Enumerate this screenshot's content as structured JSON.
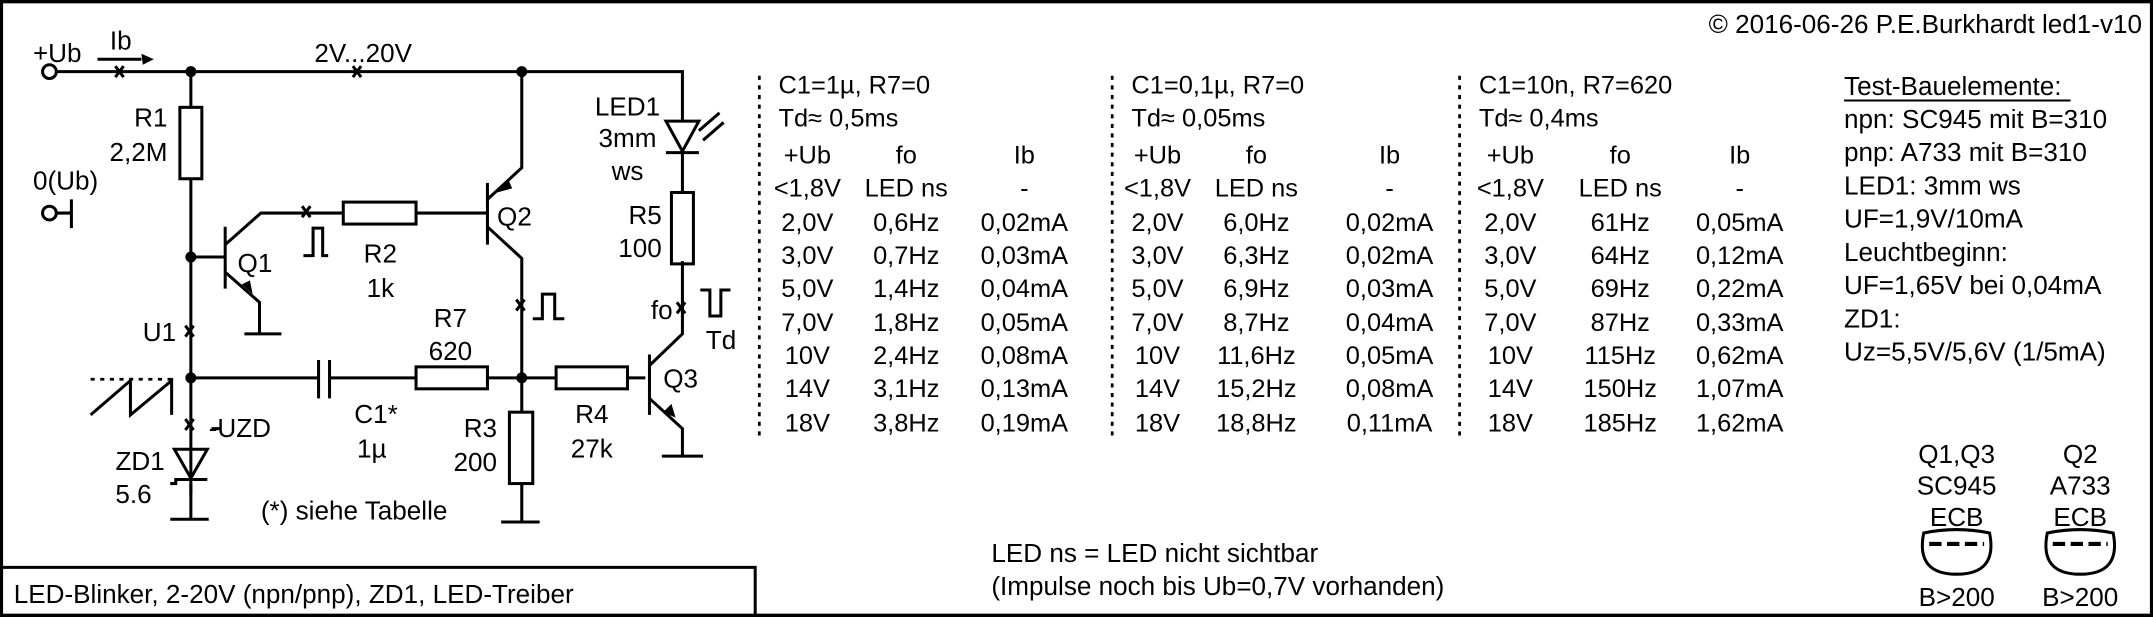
{
  "header": {
    "copyright": "© 2016-06-26 P.E.Burkhardt led1-v10"
  },
  "footer": {
    "title": "LED-Blinker, 2-20V (npn/pnp), ZD1, LED-Treiber"
  },
  "notes": {
    "line1": "LED ns = LED nicht sichtbar",
    "line2": "(Impulse noch bis Ub=0,7V vorhanden)"
  },
  "schematic": {
    "plus_ub": "+Ub",
    "ib": "Ib",
    "supply_range": "2V...20V",
    "zero_ub": "0(Ub)",
    "r1": "R1",
    "r1_val": "2,2M",
    "q1": "Q1",
    "q2": "Q2",
    "q3": "Q3",
    "r2": "R2",
    "r2_val": "1k",
    "r7": "R7",
    "r7_val": "620",
    "c1": "C1*",
    "c1_val": "1µ",
    "r3": "R3",
    "r3_val": "200",
    "r4": "R4",
    "r4_val": "27k",
    "r5": "R5",
    "r5_val": "100",
    "led1": "LED1",
    "led1_size": "3mm",
    "led1_color": "ws",
    "u1": "U1",
    "uzd": "-UZD",
    "zd1": "ZD1",
    "zd1_val": "5.6",
    "fo": "fo",
    "td": "Td",
    "note": "(*) siehe Tabelle"
  },
  "tables": [
    {
      "title": "C1=1µ, R7=0",
      "td": "Td≈  0,5ms",
      "headers": [
        "+Ub",
        "fo",
        "Ib"
      ],
      "rows": [
        [
          "<1,8V",
          "LED ns",
          "-"
        ],
        [
          "2,0V",
          "0,6Hz",
          "0,02mA"
        ],
        [
          "3,0V",
          "0,7Hz",
          "0,03mA"
        ],
        [
          "5,0V",
          "1,4Hz",
          "0,04mA"
        ],
        [
          "7,0V",
          "1,8Hz",
          "0,05mA"
        ],
        [
          "10V",
          "2,4Hz",
          "0,08mA"
        ],
        [
          "14V",
          "3,1Hz",
          "0,13mA"
        ],
        [
          "18V",
          "3,8Hz",
          "0,19mA"
        ]
      ]
    },
    {
      "title": "C1=0,1µ, R7=0",
      "td": "Td≈  0,05ms",
      "headers": [
        "+Ub",
        "fo",
        "Ib"
      ],
      "rows": [
        [
          "<1,8V",
          "LED ns",
          "-"
        ],
        [
          "2,0V",
          "6,0Hz",
          "0,02mA"
        ],
        [
          "3,0V",
          "6,3Hz",
          "0,02mA"
        ],
        [
          "5,0V",
          "6,9Hz",
          "0,03mA"
        ],
        [
          "7,0V",
          "8,7Hz",
          "0,04mA"
        ],
        [
          "10V",
          "11,6Hz",
          "0,05mA"
        ],
        [
          "14V",
          "15,2Hz",
          "0,08mA"
        ],
        [
          "18V",
          "18,8Hz",
          "0,11mA"
        ]
      ]
    },
    {
      "title": "C1=10n, R7=620",
      "td": "Td≈  0,4ms",
      "headers": [
        "+Ub",
        "fo",
        "Ib"
      ],
      "rows": [
        [
          "<1,8V",
          "LED ns",
          "-"
        ],
        [
          "2,0V",
          "61Hz",
          "0,05mA"
        ],
        [
          "3,0V",
          "64Hz",
          "0,12mA"
        ],
        [
          "5,0V",
          "69Hz",
          "0,22mA"
        ],
        [
          "7,0V",
          "87Hz",
          "0,33mA"
        ],
        [
          "10V",
          "115Hz",
          "0,62mA"
        ],
        [
          "14V",
          "150Hz",
          "1,07mA"
        ],
        [
          "18V",
          "185Hz",
          "1,62mA"
        ]
      ]
    }
  ],
  "components": {
    "title": "Test-Bauelemente:",
    "lines": [
      "npn: SC945 mit B=310",
      "pnp: A733 mit B=310",
      "LED1: 3mm ws",
      "UF=1,9V/10mA",
      "Leuchtbeginn:",
      "UF=1,65V bei 0,04mA",
      "ZD1:",
      "Uz=5,5V/5,6V (1/5mA)"
    ],
    "packages": [
      {
        "name": "Q1,Q3",
        "type": "SC945",
        "pins": "ECB",
        "gain": "B>200"
      },
      {
        "name": "Q2",
        "type": "A733",
        "pins": "ECB",
        "gain": "B>200"
      }
    ]
  }
}
